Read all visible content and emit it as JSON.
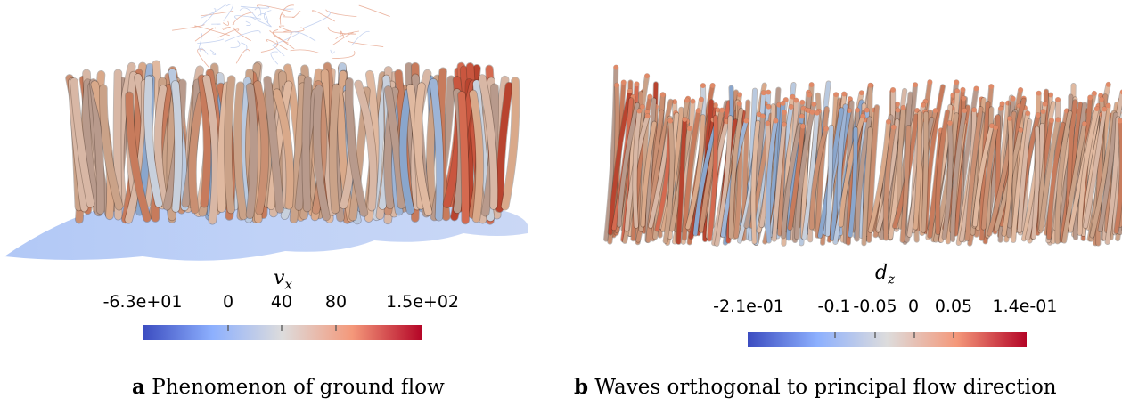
{
  "panel_a": {
    "colorbar": {
      "title_var": "v",
      "title_sub": "x",
      "ticks": [
        "-6.3e+01",
        "0",
        "40",
        "80",
        "1.5e+02"
      ],
      "gradient": [
        "#3b4cc0",
        "#8db0fe",
        "#dddcdc",
        "#f4987a",
        "#b40426"
      ]
    },
    "caption_letter": "a",
    "caption_text": "Phenomenon of ground flow"
  },
  "panel_b": {
    "colorbar": {
      "title_var": "d",
      "title_sub": "z",
      "ticks": [
        "-2.1e-01",
        "-0.1",
        "-0.05",
        "0",
        "0.05",
        "1.4e-01"
      ],
      "gradient": [
        "#3b4cc0",
        "#8db0fe",
        "#dddcdc",
        "#f4987a",
        "#b40426"
      ]
    },
    "caption_letter": "b",
    "caption_text": "Waves orthogonal to principal flow direction"
  }
}
